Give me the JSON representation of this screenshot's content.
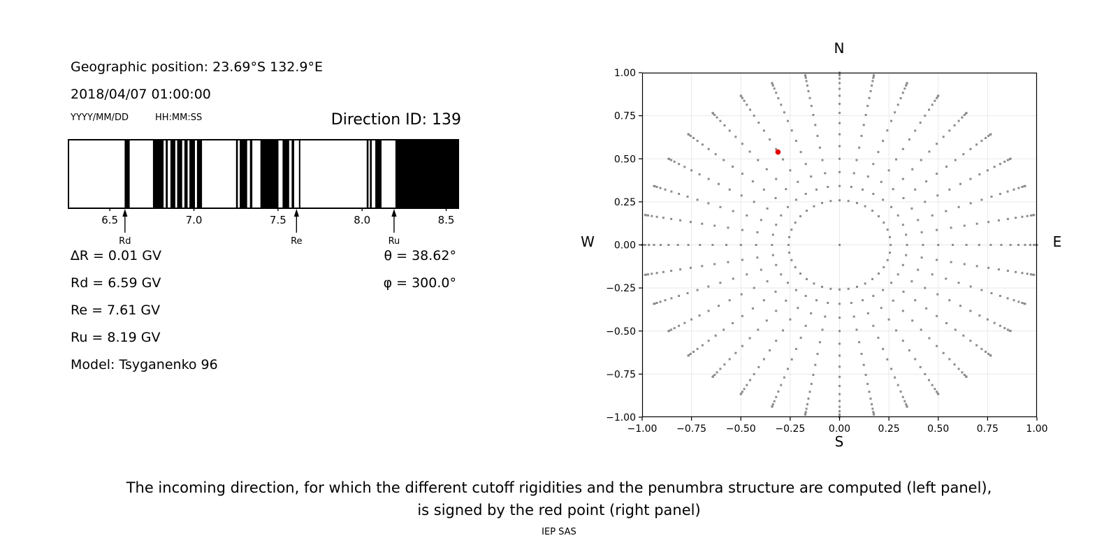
{
  "colors": {
    "bar": "#000000",
    "dot_gray": "#8c8c8c",
    "red_point": "#e60000",
    "grid_line": "#e9e9e9",
    "axis": "#000000",
    "background": "#ffffff"
  },
  "left_panel": {
    "geo_position": "Geographic position: 23.69°S 132.9°E",
    "datetime": "2018/04/07 01:00:00",
    "date_format_hint": "YYYY/MM/DD",
    "time_format_hint": "HH:MM:SS",
    "direction_id": "Direction ID: 139",
    "values": [
      "∆R = 0.01 GV",
      "Rd = 6.59 GV",
      "Re = 7.61 GV",
      "Ru = 8.19 GV",
      "Model: Tsyganenko 96"
    ],
    "angles": [
      "θ = 38.62°",
      "φ = 300.0°"
    ]
  },
  "right_panel": {
    "label_north": "N",
    "label_south": "S",
    "label_west": "W",
    "label_east": "E"
  },
  "caption": {
    "line1": "The incoming direction, for which the different cutoff rigidities and the penumbra structure are computed (left panel),",
    "line2": "is signed by the red point (right panel)",
    "credit": "IEP SAS"
  },
  "chart_data": [
    {
      "type": "bar",
      "name": "penumbra-structure",
      "description": "Cutoff rigidity penumbra barcode; black bars = allowed rigidity intervals (GV)",
      "xlim": [
        6.25,
        8.56
      ],
      "xticks": [
        6.5,
        7.0,
        7.5,
        8.0,
        8.5
      ],
      "xtick_labels": [
        "6.5",
        "7.0",
        "7.5",
        "8.0",
        "8.5"
      ],
      "allowed_intervals_gv": [
        [
          6.58,
          6.61
        ],
        [
          6.748,
          6.811
        ],
        [
          6.824,
          6.836
        ],
        [
          6.852,
          6.881
        ],
        [
          6.892,
          6.922
        ],
        [
          6.935,
          6.954
        ],
        [
          6.965,
          6.998
        ],
        [
          7.01,
          7.04
        ],
        [
          7.242,
          7.253
        ],
        [
          7.264,
          7.308
        ],
        [
          7.325,
          7.339
        ],
        [
          7.387,
          7.494
        ],
        [
          7.519,
          7.558
        ],
        [
          7.573,
          7.588
        ],
        [
          7.616,
          7.623
        ],
        [
          8.019,
          8.03
        ],
        [
          8.038,
          8.049
        ],
        [
          8.07,
          8.107
        ],
        [
          8.19,
          8.56
        ]
      ],
      "arrows": [
        {
          "label": "Rd",
          "r_gv": 6.59
        },
        {
          "label": "Re",
          "r_gv": 7.61
        },
        {
          "label": "Ru",
          "r_gv": 8.19
        }
      ]
    },
    {
      "type": "scatter",
      "name": "direction-grid",
      "description": "Grid of incoming directions projected as r=sin(zenith); red point = selected direction",
      "xlim": [
        -1,
        1
      ],
      "ylim": [
        -1,
        1
      ],
      "ticks": [
        -1,
        -0.75,
        -0.5,
        -0.25,
        0,
        0.25,
        0.5,
        0.75,
        1
      ],
      "tick_labels": [
        "−1.00",
        "−0.75",
        "−0.50",
        "−0.25",
        "0.00",
        "0.25",
        "0.50",
        "0.75",
        "1.00"
      ],
      "grid": true,
      "direction_grid": {
        "azimuth_start_deg": 0,
        "azimuth_step_deg": 10,
        "azimuth_count": 36,
        "zenith_min_deg": 15,
        "zenith_max_deg": 90,
        "zenith_step_deg": 5,
        "projection": "r = sin(zenith)",
        "includes_center_point": true
      },
      "red_point": {
        "x": -0.312,
        "y": 0.539,
        "theta_deg": 38.62,
        "phi_deg": 300.0
      }
    }
  ]
}
